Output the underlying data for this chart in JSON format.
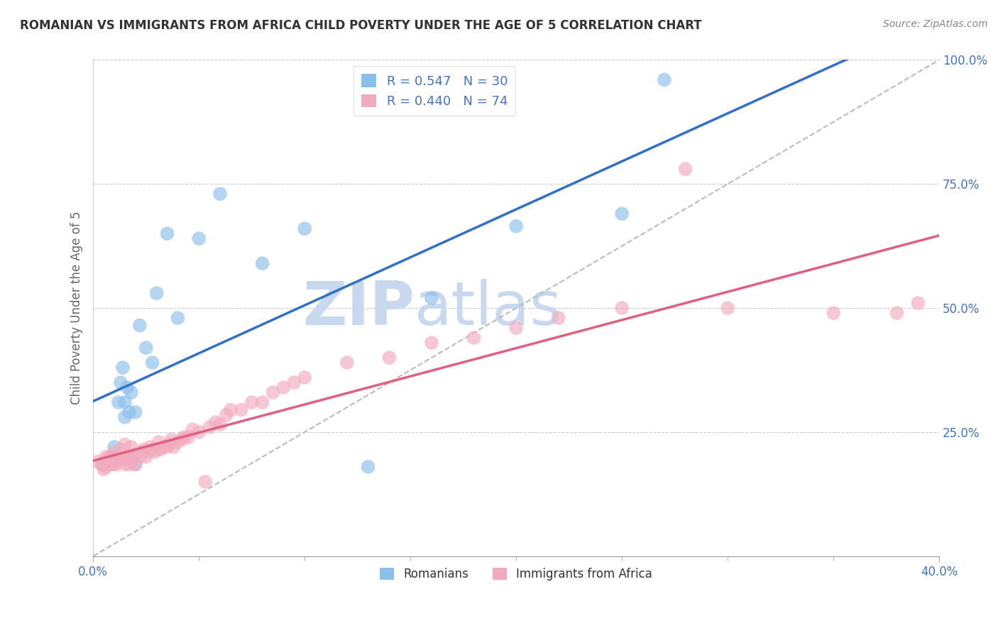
{
  "title": "ROMANIAN VS IMMIGRANTS FROM AFRICA CHILD POVERTY UNDER THE AGE OF 5 CORRELATION CHART",
  "source": "Source: ZipAtlas.com",
  "ylabel": "Child Poverty Under the Age of 5",
  "xlim": [
    0.0,
    0.4
  ],
  "ylim": [
    0.0,
    1.0
  ],
  "xticks_minor": [
    0.0,
    0.05,
    0.1,
    0.15,
    0.2,
    0.25,
    0.3,
    0.35,
    0.4
  ],
  "xtick_labels_main": {
    "0.0": "0.0%",
    "0.40": "40.0%"
  },
  "yticks": [
    0.0,
    0.25,
    0.5,
    0.75,
    1.0
  ],
  "ytick_labels": [
    "",
    "25.0%",
    "50.0%",
    "75.0%",
    "100.0%"
  ],
  "romanian_R": 0.547,
  "romanian_N": 30,
  "africa_R": 0.44,
  "africa_N": 74,
  "blue_color": "#8BBFEA",
  "pink_color": "#F2ABBE",
  "blue_line_color": "#3070C8",
  "pink_line_color": "#E06080",
  "ref_line_color": "#BBBBBB",
  "title_color": "#333333",
  "axis_label_color": "#4472C4",
  "watermark_color": "#C8D8EE",
  "romanian_x": [
    0.005,
    0.007,
    0.008,
    0.01,
    0.01,
    0.012,
    0.013,
    0.014,
    0.015,
    0.015,
    0.016,
    0.017,
    0.018,
    0.02,
    0.02,
    0.022,
    0.025,
    0.028,
    0.03,
    0.035,
    0.04,
    0.05,
    0.06,
    0.08,
    0.1,
    0.13,
    0.16,
    0.2,
    0.25,
    0.27
  ],
  "romanian_y": [
    0.185,
    0.19,
    0.195,
    0.19,
    0.22,
    0.31,
    0.35,
    0.38,
    0.28,
    0.31,
    0.34,
    0.29,
    0.33,
    0.185,
    0.29,
    0.465,
    0.42,
    0.39,
    0.53,
    0.65,
    0.48,
    0.64,
    0.73,
    0.59,
    0.66,
    0.18,
    0.52,
    0.665,
    0.69,
    0.96
  ],
  "africa_x": [
    0.002,
    0.004,
    0.005,
    0.006,
    0.006,
    0.007,
    0.008,
    0.008,
    0.009,
    0.01,
    0.01,
    0.01,
    0.011,
    0.012,
    0.013,
    0.013,
    0.014,
    0.015,
    0.015,
    0.015,
    0.016,
    0.017,
    0.018,
    0.018,
    0.019,
    0.02,
    0.02,
    0.022,
    0.023,
    0.024,
    0.025,
    0.026,
    0.027,
    0.028,
    0.029,
    0.03,
    0.031,
    0.032,
    0.033,
    0.035,
    0.036,
    0.037,
    0.038,
    0.04,
    0.042,
    0.043,
    0.045,
    0.047,
    0.05,
    0.053,
    0.055,
    0.058,
    0.06,
    0.063,
    0.065,
    0.07,
    0.075,
    0.08,
    0.085,
    0.09,
    0.095,
    0.1,
    0.12,
    0.14,
    0.16,
    0.18,
    0.2,
    0.22,
    0.25,
    0.28,
    0.3,
    0.35,
    0.38,
    0.39
  ],
  "africa_y": [
    0.19,
    0.185,
    0.175,
    0.18,
    0.2,
    0.195,
    0.185,
    0.2,
    0.195,
    0.185,
    0.195,
    0.21,
    0.185,
    0.2,
    0.195,
    0.215,
    0.195,
    0.185,
    0.2,
    0.225,
    0.195,
    0.185,
    0.2,
    0.22,
    0.195,
    0.185,
    0.205,
    0.2,
    0.21,
    0.215,
    0.2,
    0.21,
    0.22,
    0.215,
    0.21,
    0.215,
    0.23,
    0.215,
    0.22,
    0.22,
    0.225,
    0.235,
    0.22,
    0.23,
    0.235,
    0.24,
    0.24,
    0.255,
    0.25,
    0.15,
    0.26,
    0.27,
    0.265,
    0.285,
    0.295,
    0.295,
    0.31,
    0.31,
    0.33,
    0.34,
    0.35,
    0.36,
    0.39,
    0.4,
    0.43,
    0.44,
    0.46,
    0.48,
    0.5,
    0.78,
    0.5,
    0.49,
    0.49,
    0.51
  ]
}
